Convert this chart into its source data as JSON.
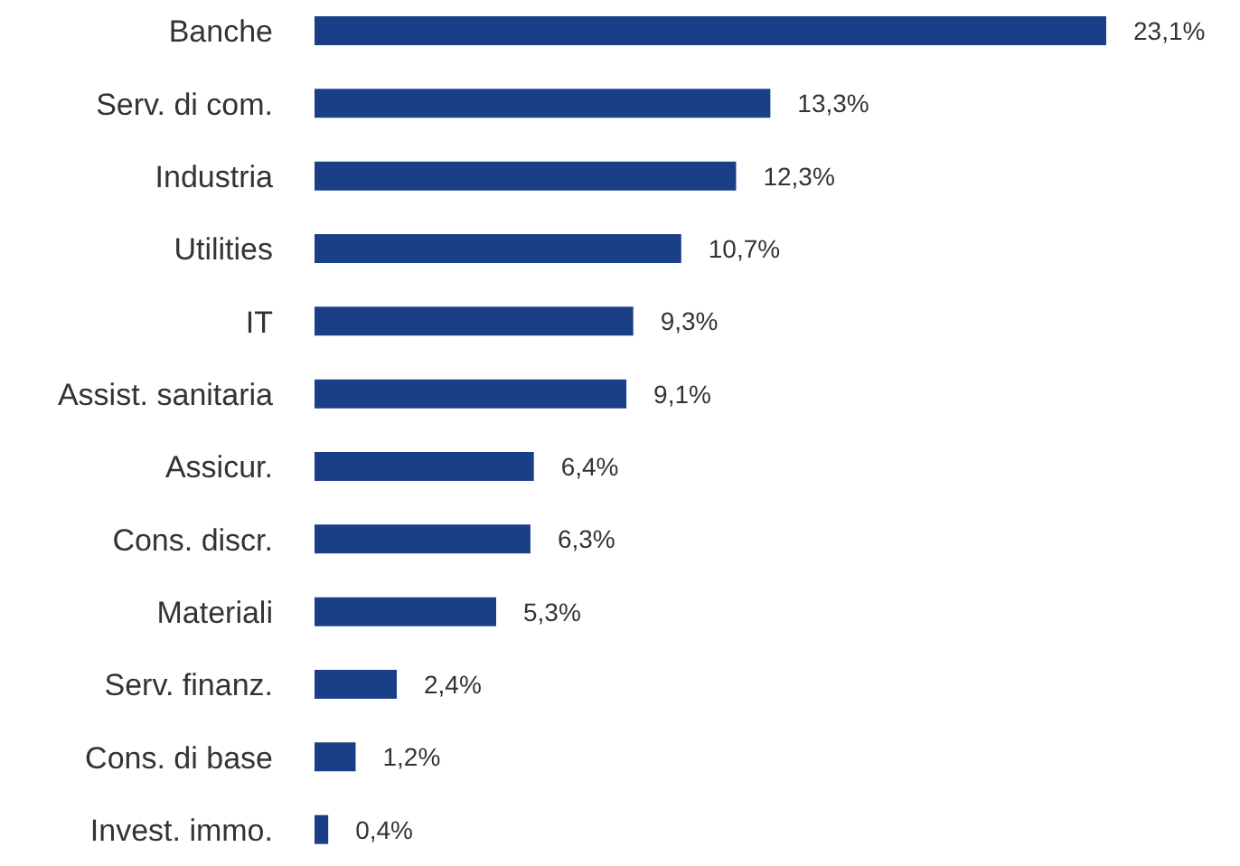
{
  "chart_data": {
    "type": "bar",
    "orientation": "horizontal",
    "categories": [
      "Banche",
      "Serv. di com.",
      "Industria",
      "Utilities",
      "IT",
      "Assist. sanitaria",
      "Assicur.",
      "Cons. discr.",
      "Materiali",
      "Serv. finanz.",
      "Cons. di base",
      "Invest. immo."
    ],
    "values": [
      23.1,
      13.3,
      12.3,
      10.7,
      9.3,
      9.1,
      6.4,
      6.3,
      5.3,
      2.4,
      1.2,
      0.4
    ],
    "value_labels": [
      "23,1%",
      "13,3%",
      "12,3%",
      "10,7%",
      "9,3%",
      "9,1%",
      "6,4%",
      "6,3%",
      "5,3%",
      "2,4%",
      "1,2%",
      "0,4%"
    ],
    "color": "#1b3f86"
  }
}
